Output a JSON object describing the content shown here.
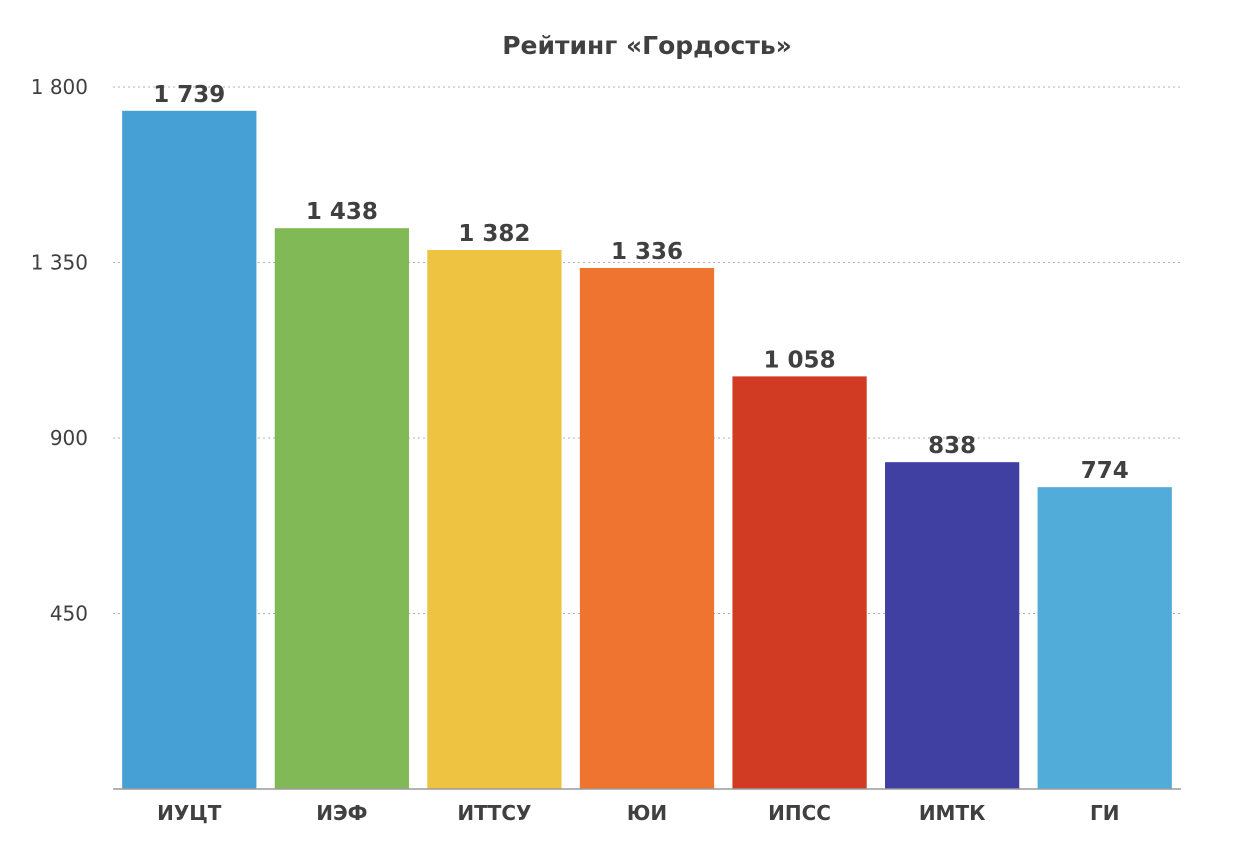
{
  "chart_data": {
    "type": "bar",
    "title": "Рейтинг «Гордость»",
    "xlabel": "",
    "ylabel": "",
    "categories": [
      "ИУЦТ",
      "ИЭФ",
      "ИТТСУ",
      "ЮИ",
      "ИПСС",
      "ИМТК",
      "ГИ"
    ],
    "values": [
      1739,
      1438,
      1382,
      1336,
      1058,
      838,
      774
    ],
    "value_labels": [
      "1 739",
      "1 438",
      "1 382",
      "1 336",
      "1 058",
      "838",
      "774"
    ],
    "colors": [
      "#46A0D6",
      "#82B957",
      "#EEC341",
      "#EE7430",
      "#D13A23",
      "#4040A3",
      "#52ACD9"
    ],
    "ylim": [
      0,
      1800
    ],
    "yticks": [
      450,
      900,
      1350,
      1800
    ],
    "ytick_labels": [
      "450",
      "900",
      "1 350",
      "1 800"
    ],
    "grid": true,
    "legend": "none"
  }
}
